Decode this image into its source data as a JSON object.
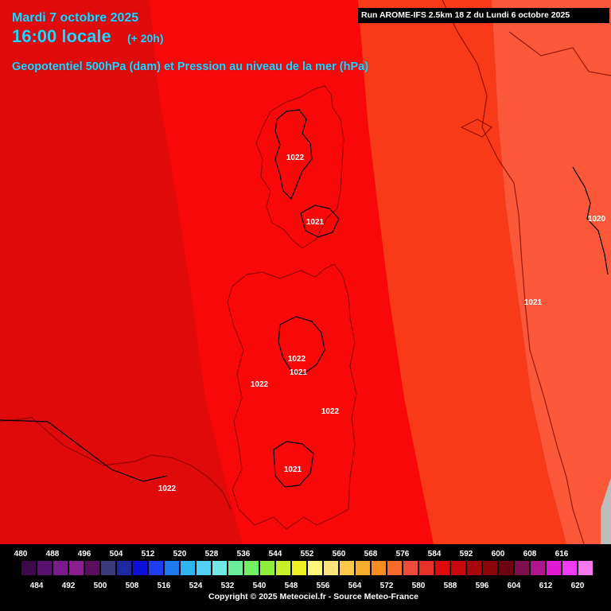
{
  "header": {
    "date": "Mardi 7 octobre 2025",
    "time": "16:00 locale",
    "lead": "(+ 20h)",
    "parameter": "Geopotentiel 500hPa (dam) et Pression au niveau de la mer (hPa)",
    "run": "Run AROME-IFS 2.5km 18 Z du Lundi 6 octobre 2025"
  },
  "isobar_labels": [
    "1022",
    "1021",
    "1020",
    "1021",
    "1022",
    "1021",
    "1022",
    "1022",
    "1021",
    "1022"
  ],
  "legend": {
    "top_labels": [
      "480",
      "488",
      "496",
      "504",
      "512",
      "520",
      "528",
      "536",
      "544",
      "552",
      "560",
      "568",
      "576",
      "584",
      "592",
      "600",
      "608",
      "616"
    ],
    "bottom_labels": [
      "484",
      "492",
      "500",
      "508",
      "516",
      "524",
      "532",
      "540",
      "548",
      "556",
      "564",
      "572",
      "580",
      "588",
      "596",
      "604",
      "612",
      "620"
    ],
    "colors": [
      "#3c0a4a",
      "#5a0f6e",
      "#7a1a8c",
      "#8c1f8f",
      "#5b0d5e",
      "#3a3a7a",
      "#1b2aa0",
      "#0c10d8",
      "#1e3cf2",
      "#1e78f0",
      "#30b4f4",
      "#4fd0f4",
      "#70e8e6",
      "#6aee9a",
      "#6ef060",
      "#8ef03a",
      "#c8f028",
      "#eef024",
      "#fff57a",
      "#fce37c",
      "#fbc84a",
      "#f8ac2c",
      "#f88c20",
      "#f86a2a",
      "#f04a3a",
      "#e83028",
      "#e00a0a",
      "#c8080a",
      "#a8060a",
      "#8a0508",
      "#6e0410",
      "#7e0f4e",
      "#b0148e",
      "#e01ad2",
      "#f03cf4",
      "#f678ee"
    ]
  },
  "copyright": "Copyright © 2025 Meteociel.fr - Source Meteo-France",
  "colors": {
    "band_584_588": "#e00a0a",
    "band_580_584": "#f80808",
    "band_576_580": "#f83a18",
    "band_572_576": "#fa5838",
    "header_text": "#29d3ff"
  }
}
